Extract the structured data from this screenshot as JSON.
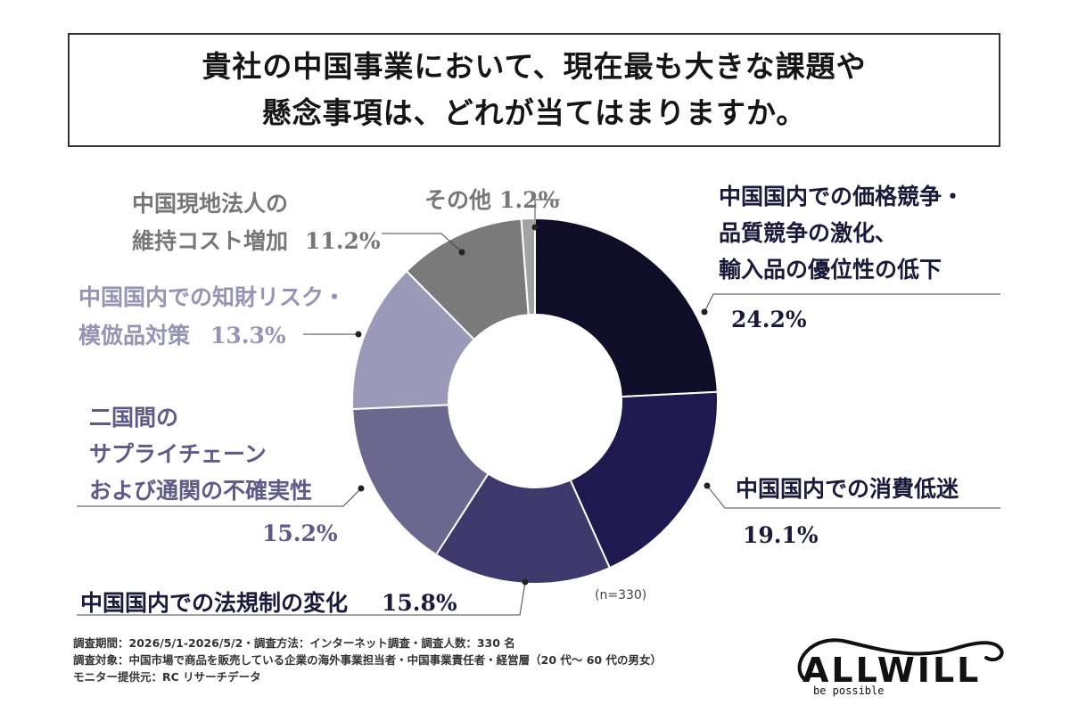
{
  "title": {
    "line1": "貴社の中国事業において、現在最も大きな課題や",
    "line2": "懸念事項は、どれが当てはまりますか。"
  },
  "chart_data": {
    "type": "pie",
    "donut": true,
    "n_label": "(n=330)",
    "slices": [
      {
        "label_lines": [
          "中国国内での価格競争・",
          "品質競争の激化、",
          "輸入品の優位性の低下"
        ],
        "pct_text": "24.2%",
        "value": 24.2,
        "color": "#0f0d28"
      },
      {
        "label_lines": [
          "中国国内での消費低迷"
        ],
        "pct_text": "19.1%",
        "value": 19.1,
        "color": "#1e1a50"
      },
      {
        "label_lines": [
          "中国国内での法規制の変化"
        ],
        "pct_text": "15.8%",
        "value": 15.8,
        "color": "#3d3a6b"
      },
      {
        "label_lines": [
          "二国間の",
          "サプライチェーン",
          "および通関の不確実性"
        ],
        "pct_text": "15.2%",
        "value": 15.2,
        "color": "#6b6890"
      },
      {
        "label_lines": [
          "中国国内での知財リスク・",
          "模倣品対策"
        ],
        "pct_text": "13.3%",
        "value": 13.3,
        "color": "#9b99b8"
      },
      {
        "label_lines": [
          "中国現地法人の",
          "維持コスト増加"
        ],
        "pct_text": "11.2%",
        "value": 11.2,
        "color": "#7a7a7a"
      },
      {
        "label_lines": [
          "その他"
        ],
        "pct_text": "1.2%",
        "value": 1.2,
        "color": "#a3a3a3"
      }
    ]
  },
  "notes": {
    "line1": "調査期間：2026/5/1-2026/5/2・調査方法：インターネット調査・調査人数：330 名",
    "line2": "調査対象：中国市場で商品を販売している企業の海外事業担当者・中国事業責任者・経営層（20 代〜 60 代の男女）",
    "line3": "モニター提供元：RC リサーチデータ"
  },
  "logo": {
    "text": "ALLWILL",
    "tagline": "be possible"
  },
  "colors": {
    "label_dark": "#1a1a3a",
    "label_mid": "#5e5b88",
    "label_light": "#9694b5",
    "label_gray": "#777777"
  }
}
